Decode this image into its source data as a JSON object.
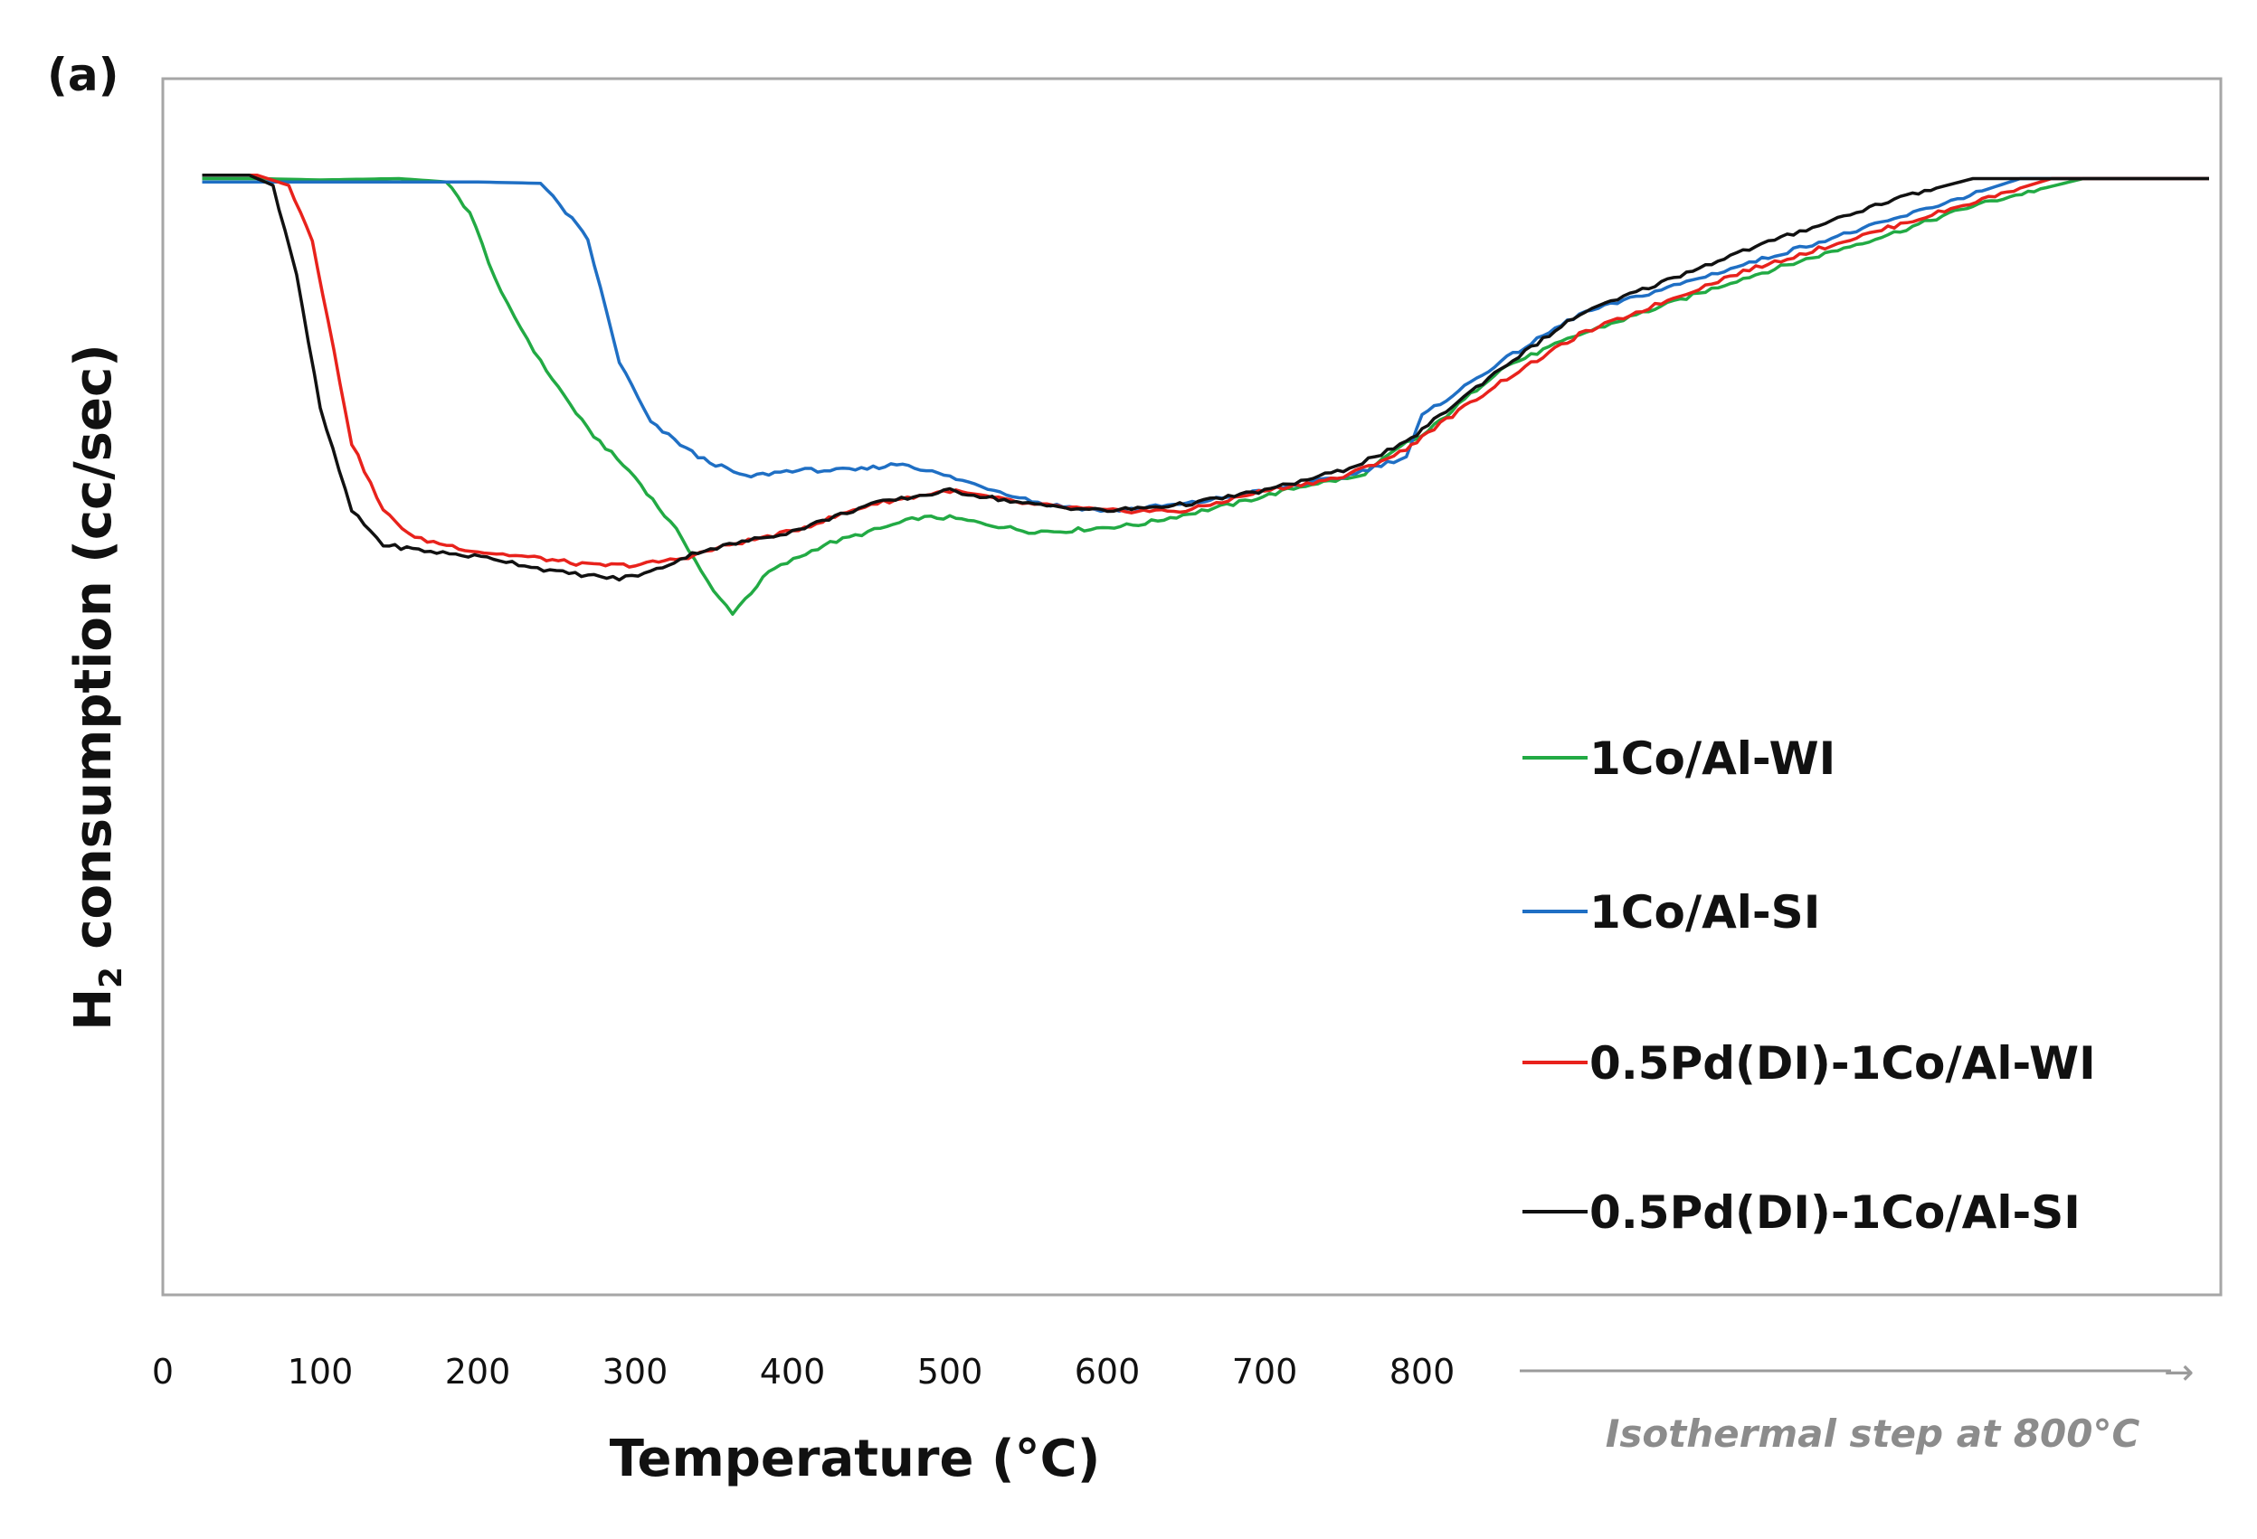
{
  "panel_label": "(a)",
  "chart_data": {
    "type": "line",
    "title": "",
    "xlabel": "Temperature (°C)",
    "ylabel_main": "H",
    "ylabel_sub": "2",
    "ylabel_rest": " consumption (cc/sec)",
    "x_ticks": [
      "0",
      "100",
      "200",
      "300",
      "400",
      "500",
      "600",
      "700",
      "800"
    ],
    "xlim": [
      0,
      800
    ],
    "ylim": [
      0,
      1
    ],
    "grid": false,
    "legend_position": "right",
    "isothermal_label": "Isothermal step at 800°C",
    "isothermal_arrow": "→",
    "series": [
      {
        "name": "1Co/Al-WI",
        "color": "#22aa44",
        "points": [
          [
            25,
            0.99
          ],
          [
            60,
            0.99
          ],
          [
            100,
            0.988
          ],
          [
            150,
            0.99
          ],
          [
            180,
            0.985
          ],
          [
            195,
            0.94
          ],
          [
            215,
            0.82
          ],
          [
            240,
            0.72
          ],
          [
            270,
            0.62
          ],
          [
            300,
            0.55
          ],
          [
            330,
            0.46
          ],
          [
            350,
            0.38
          ],
          [
            362,
            0.35
          ],
          [
            370,
            0.37
          ],
          [
            385,
            0.41
          ],
          [
            420,
            0.45
          ],
          [
            480,
            0.49
          ],
          [
            500,
            0.49
          ],
          [
            550,
            0.47
          ],
          [
            570,
            0.47
          ],
          [
            620,
            0.48
          ],
          [
            680,
            0.51
          ],
          [
            730,
            0.54
          ],
          [
            760,
            0.55
          ],
          [
            790,
            0.6
          ],
          [
            800,
            0.61
          ],
          [
            850,
            0.71
          ],
          [
            900,
            0.76
          ],
          [
            1000,
            0.84
          ],
          [
            1100,
            0.91
          ],
          [
            1150,
            0.95
          ],
          [
            1220,
            0.99
          ],
          [
            1300,
            0.99
          ]
        ]
      },
      {
        "name": "1Co/Al-SI",
        "color": "#1f6fc4",
        "points": [
          [
            25,
            0.985
          ],
          [
            100,
            0.985
          ],
          [
            200,
            0.985
          ],
          [
            240,
            0.983
          ],
          [
            260,
            0.93
          ],
          [
            270,
            0.9
          ],
          [
            290,
            0.72
          ],
          [
            310,
            0.63
          ],
          [
            340,
            0.58
          ],
          [
            370,
            0.55
          ],
          [
            400,
            0.56
          ],
          [
            440,
            0.56
          ],
          [
            470,
            0.57
          ],
          [
            500,
            0.55
          ],
          [
            560,
            0.51
          ],
          [
            600,
            0.5
          ],
          [
            650,
            0.51
          ],
          [
            700,
            0.53
          ],
          [
            750,
            0.55
          ],
          [
            790,
            0.58
          ],
          [
            800,
            0.64
          ],
          [
            850,
            0.72
          ],
          [
            900,
            0.79
          ],
          [
            1000,
            0.86
          ],
          [
            1100,
            0.93
          ],
          [
            1180,
            0.99
          ],
          [
            1300,
            0.99
          ]
        ]
      },
      {
        "name": "0.5Pd(DI)-1Co/Al-WI",
        "color": "#e8221c",
        "points": [
          [
            25,
            0.995
          ],
          [
            60,
            0.995
          ],
          [
            80,
            0.98
          ],
          [
            95,
            0.9
          ],
          [
            105,
            0.78
          ],
          [
            120,
            0.6
          ],
          [
            140,
            0.5
          ],
          [
            160,
            0.46
          ],
          [
            200,
            0.44
          ],
          [
            240,
            0.43
          ],
          [
            270,
            0.42
          ],
          [
            300,
            0.42
          ],
          [
            330,
            0.43
          ],
          [
            360,
            0.45
          ],
          [
            400,
            0.47
          ],
          [
            450,
            0.51
          ],
          [
            500,
            0.53
          ],
          [
            550,
            0.51
          ],
          [
            600,
            0.5
          ],
          [
            650,
            0.5
          ],
          [
            700,
            0.53
          ],
          [
            750,
            0.55
          ],
          [
            790,
            0.59
          ],
          [
            800,
            0.61
          ],
          [
            850,
            0.69
          ],
          [
            900,
            0.76
          ],
          [
            1000,
            0.85
          ],
          [
            1100,
            0.92
          ],
          [
            1200,
            0.99
          ],
          [
            1300,
            0.99
          ]
        ]
      },
      {
        "name": "0.5Pd(DI)-1Co/Al-SI",
        "color": "#111111",
        "points": [
          [
            25,
            0.995
          ],
          [
            55,
            0.995
          ],
          [
            70,
            0.98
          ],
          [
            85,
            0.85
          ],
          [
            100,
            0.65
          ],
          [
            120,
            0.5
          ],
          [
            140,
            0.45
          ],
          [
            170,
            0.44
          ],
          [
            210,
            0.43
          ],
          [
            250,
            0.41
          ],
          [
            290,
            0.4
          ],
          [
            310,
            0.41
          ],
          [
            340,
            0.44
          ],
          [
            400,
            0.47
          ],
          [
            450,
            0.51
          ],
          [
            500,
            0.53
          ],
          [
            550,
            0.51
          ],
          [
            600,
            0.5
          ],
          [
            650,
            0.51
          ],
          [
            700,
            0.53
          ],
          [
            750,
            0.56
          ],
          [
            790,
            0.6
          ],
          [
            800,
            0.62
          ],
          [
            850,
            0.71
          ],
          [
            900,
            0.79
          ],
          [
            1000,
            0.88
          ],
          [
            1100,
            0.96
          ],
          [
            1150,
            0.99
          ],
          [
            1300,
            0.99
          ]
        ]
      }
    ]
  }
}
